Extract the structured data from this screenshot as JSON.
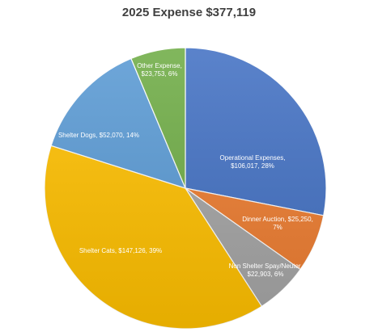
{
  "chart_data": {
    "type": "pie",
    "title": "2025 Expense $377,119",
    "slices": [
      {
        "name": "Operational Expenses",
        "value": 106017,
        "percent": 28,
        "color": "#4472C4",
        "label_lines": [
          "Operational Expenses,",
          "$106,017, 28%"
        ]
      },
      {
        "name": "Dinner Auction",
        "value": 25250,
        "percent": 7,
        "color": "#ED7D31",
        "label_lines": [
          "Dinner Auction, $25,250,",
          "7%"
        ]
      },
      {
        "name": "Non Shelter Spay/Neuter",
        "value": 22903,
        "percent": 6,
        "color": "#A5A5A5",
        "label_lines": [
          "Non Shelter Spay/Neuter,",
          "$22,903, 6%"
        ]
      },
      {
        "name": "Shelter Cats",
        "value": 147126,
        "percent": 39,
        "color": "#FFC000",
        "label_lines": [
          "Shelter Cats, $147,126, 39%"
        ]
      },
      {
        "name": "Shelter Dogs",
        "value": 52070,
        "percent": 14,
        "color": "#5B9BD5",
        "label_lines": [
          "Shelter Dogs, $52,070, 14%"
        ]
      },
      {
        "name": "Other Expense",
        "value": 23753,
        "percent": 6,
        "color": "#70AD47",
        "label_lines": [
          "Other Expense,",
          "$23,753, 6%"
        ]
      }
    ],
    "legend": "none"
  }
}
